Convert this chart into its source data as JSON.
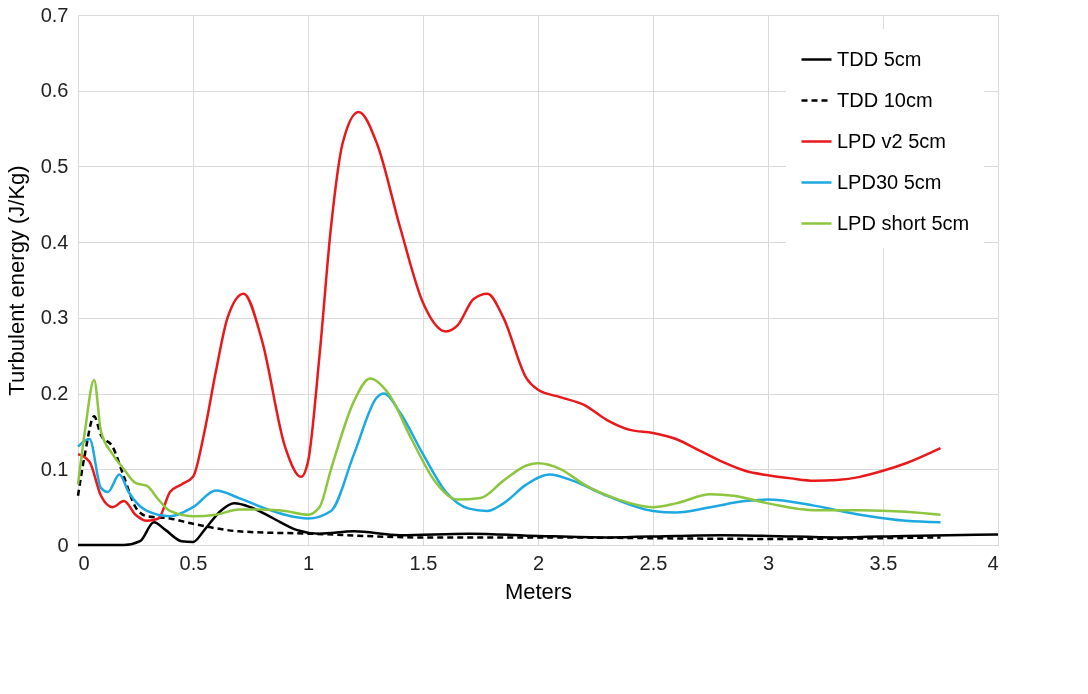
{
  "chart_data": {
    "type": "line",
    "xlabel": "Meters",
    "ylabel": "Turbulent energy (J/Kg)",
    "xlim": [
      0,
      4
    ],
    "ylim": [
      0,
      0.7
    ],
    "xticks": [
      0,
      0.5,
      1,
      1.5,
      2,
      2.5,
      3,
      3.5,
      4
    ],
    "yticks": [
      0,
      0.1,
      0.2,
      0.3,
      0.4,
      0.5,
      0.6,
      0.7
    ],
    "grid": true,
    "legend": "top right",
    "marker": "none",
    "series": [
      {
        "name": "TDD 5cm",
        "color": "#000000",
        "line_style": "solid",
        "x": [
          0,
          0.2,
          0.27,
          0.33,
          0.38,
          0.45,
          0.5,
          0.55,
          0.62,
          0.68,
          0.75,
          0.85,
          0.95,
          1.05,
          1.2,
          1.4,
          1.7,
          2.0,
          2.3,
          2.6,
          2.8,
          3.0,
          3.3,
          3.6,
          4.0
        ],
        "values": [
          0,
          0,
          0.005,
          0.03,
          0.02,
          0.005,
          0.004,
          0.02,
          0.045,
          0.055,
          0.05,
          0.035,
          0.02,
          0.015,
          0.018,
          0.013,
          0.015,
          0.012,
          0.01,
          0.012,
          0.013,
          0.012,
          0.01,
          0.012,
          0.014
        ]
      },
      {
        "name": "TDD 10cm",
        "color": "#000000",
        "line_style": "dashed",
        "x": [
          0,
          0.03,
          0.07,
          0.1,
          0.15,
          0.2,
          0.25,
          0.3,
          0.4,
          0.5,
          0.6,
          0.7,
          1.0,
          1.5,
          2.0,
          3.0,
          3.75
        ],
        "values": [
          0.065,
          0.12,
          0.17,
          0.145,
          0.13,
          0.09,
          0.05,
          0.038,
          0.035,
          0.028,
          0.022,
          0.018,
          0.015,
          0.01,
          0.01,
          0.008,
          0.01
        ]
      },
      {
        "name": "LPD v2 5cm",
        "color": "#e8191b",
        "line_style": "solid",
        "x": [
          0,
          0.05,
          0.1,
          0.15,
          0.2,
          0.25,
          0.3,
          0.35,
          0.4,
          0.45,
          0.5,
          0.55,
          0.6,
          0.65,
          0.72,
          0.8,
          0.9,
          0.97,
          1.0,
          1.05,
          1.1,
          1.15,
          1.22,
          1.3,
          1.4,
          1.5,
          1.6,
          1.65,
          1.72,
          1.78,
          1.85,
          1.95,
          2.0,
          2.1,
          2.2,
          2.3,
          2.4,
          2.5,
          2.6,
          2.7,
          2.8,
          2.9,
          3.0,
          3.1,
          3.2,
          3.3,
          3.4,
          3.5,
          3.6,
          3.75
        ],
        "values": [
          0.12,
          0.11,
          0.065,
          0.05,
          0.058,
          0.04,
          0.032,
          0.035,
          0.07,
          0.08,
          0.09,
          0.15,
          0.23,
          0.3,
          0.332,
          0.27,
          0.13,
          0.09,
          0.11,
          0.25,
          0.42,
          0.53,
          0.572,
          0.53,
          0.42,
          0.32,
          0.282,
          0.29,
          0.325,
          0.332,
          0.3,
          0.22,
          0.205,
          0.195,
          0.185,
          0.165,
          0.152,
          0.148,
          0.14,
          0.125,
          0.11,
          0.098,
          0.092,
          0.088,
          0.085,
          0.086,
          0.09,
          0.098,
          0.108,
          0.128
        ]
      },
      {
        "name": "LPD30 5cm",
        "color": "#1ca9e1",
        "line_style": "solid",
        "x": [
          0,
          0.05,
          0.1,
          0.13,
          0.18,
          0.22,
          0.3,
          0.4,
          0.5,
          0.6,
          0.7,
          0.8,
          0.9,
          1.0,
          1.1,
          1.2,
          1.3,
          1.33,
          1.4,
          1.5,
          1.6,
          1.7,
          1.78,
          1.85,
          1.95,
          2.05,
          2.15,
          2.3,
          2.5,
          2.6,
          2.75,
          2.9,
          3.0,
          3.2,
          3.4,
          3.6,
          3.75
        ],
        "values": [
          0.13,
          0.14,
          0.075,
          0.07,
          0.093,
          0.07,
          0.045,
          0.038,
          0.05,
          0.072,
          0.062,
          0.05,
          0.04,
          0.035,
          0.045,
          0.12,
          0.195,
          0.2,
          0.175,
          0.12,
          0.07,
          0.048,
          0.045,
          0.055,
          0.08,
          0.093,
          0.085,
          0.065,
          0.045,
          0.043,
          0.05,
          0.058,
          0.06,
          0.052,
          0.04,
          0.032,
          0.03
        ]
      },
      {
        "name": "LPD short 5cm",
        "color": "#8cc63f",
        "line_style": "solid",
        "x": [
          0,
          0.03,
          0.07,
          0.1,
          0.15,
          0.2,
          0.25,
          0.3,
          0.35,
          0.4,
          0.5,
          0.6,
          0.7,
          0.8,
          0.9,
          1.0,
          1.05,
          1.1,
          1.2,
          1.27,
          1.35,
          1.45,
          1.55,
          1.65,
          1.75,
          1.85,
          1.95,
          2.0,
          2.1,
          2.2,
          2.35,
          2.5,
          2.6,
          2.75,
          2.85,
          3.0,
          3.2,
          3.4,
          3.6,
          3.75
        ],
        "values": [
          0.08,
          0.15,
          0.218,
          0.15,
          0.12,
          0.1,
          0.082,
          0.078,
          0.06,
          0.045,
          0.038,
          0.04,
          0.047,
          0.047,
          0.045,
          0.04,
          0.05,
          0.1,
          0.19,
          0.22,
          0.2,
          0.14,
          0.085,
          0.06,
          0.062,
          0.085,
          0.105,
          0.108,
          0.1,
          0.08,
          0.06,
          0.05,
          0.055,
          0.067,
          0.065,
          0.055,
          0.046,
          0.046,
          0.044,
          0.04
        ]
      }
    ]
  }
}
